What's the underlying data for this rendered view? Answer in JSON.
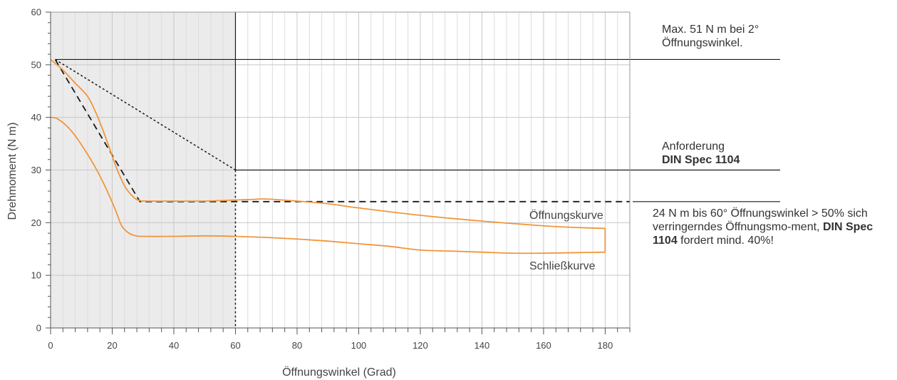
{
  "chart_data": {
    "type": "line",
    "xlabel": "Öffnungswinkel (Grad)",
    "ylabel": "Drehmoment (N m)",
    "xlim": [
      0,
      188
    ],
    "ylim": [
      0,
      60
    ],
    "x_ticks": [
      0,
      20,
      40,
      60,
      80,
      100,
      120,
      140,
      160,
      180
    ],
    "y_ticks": [
      0,
      10,
      20,
      30,
      40,
      50,
      60
    ],
    "shaded_region": {
      "x": [
        0,
        60
      ],
      "color": "#ebebeb"
    },
    "grid": true,
    "series": [
      {
        "name": "Öffnungskurve",
        "color": "#f0963c",
        "x": [
          0,
          4,
          8,
          12,
          15,
          18,
          21,
          24,
          27,
          29,
          32,
          40,
          50,
          60,
          65,
          70,
          80,
          90,
          100,
          120,
          140,
          160,
          170,
          180
        ],
        "y": [
          51,
          49,
          46.5,
          44,
          40.5,
          36,
          31,
          27,
          24.8,
          24.2,
          24.1,
          24.1,
          24.1,
          24.3,
          24.4,
          24.5,
          24.1,
          23.6,
          22.8,
          21.4,
          20.3,
          19.4,
          19.1,
          18.9
        ]
      },
      {
        "name": "Schließkurve",
        "color": "#f0963c",
        "x": [
          0,
          2,
          5,
          8,
          12,
          15,
          18,
          21,
          23,
          25,
          27,
          30,
          40,
          50,
          60,
          70,
          80,
          90,
          100,
          110,
          120,
          130,
          140,
          150,
          160,
          170,
          180
        ],
        "y": [
          40,
          39.8,
          38.5,
          36.5,
          33,
          30,
          26.5,
          22.5,
          19.5,
          18.2,
          17.6,
          17.4,
          17.4,
          17.5,
          17.4,
          17.2,
          16.9,
          16.5,
          16,
          15.5,
          14.8,
          14.6,
          14.4,
          14.2,
          14.2,
          14.3,
          14.4
        ]
      }
    ],
    "closing_edge_x": 180,
    "reference_lines": {
      "max_hline_y": 51,
      "din_hline_y": 30,
      "din_hline_from_x": 60,
      "req_hline_y": 24,
      "dotted_line": {
        "x": [
          1.5,
          60
        ],
        "y": [
          51,
          30
        ]
      },
      "dashed_line": {
        "x": [
          1.5,
          29,
          188
        ],
        "y": [
          51,
          24,
          24
        ]
      },
      "dotted_vline_x": 60,
      "solid_vline_x": 60,
      "solid_vline_from_y": 30
    },
    "curve_labels": {
      "opening": "Öffnungskurve",
      "closing": "Schließkurve"
    }
  },
  "annotations": {
    "max": {
      "line1": "Max. 51 N m bei 2°",
      "line2": "Öffnungswinkel."
    },
    "din": {
      "line1": "Anforderung",
      "line2": "DIN Spec 1104"
    },
    "req": {
      "text1": "24 N m bis 60° Öffnungswinkel > 50% sich verringerndes Öffnungsmo-ment,",
      "bold": "DIN Spec 1104",
      "text2": "fordert mind. 40%!"
    }
  },
  "colors": {
    "curve": "#f0963c",
    "shade": "#ebebeb",
    "grid_major": "#c8c8c8",
    "grid_minor": "#dcdcdc",
    "lines": "#1a1a1a"
  }
}
